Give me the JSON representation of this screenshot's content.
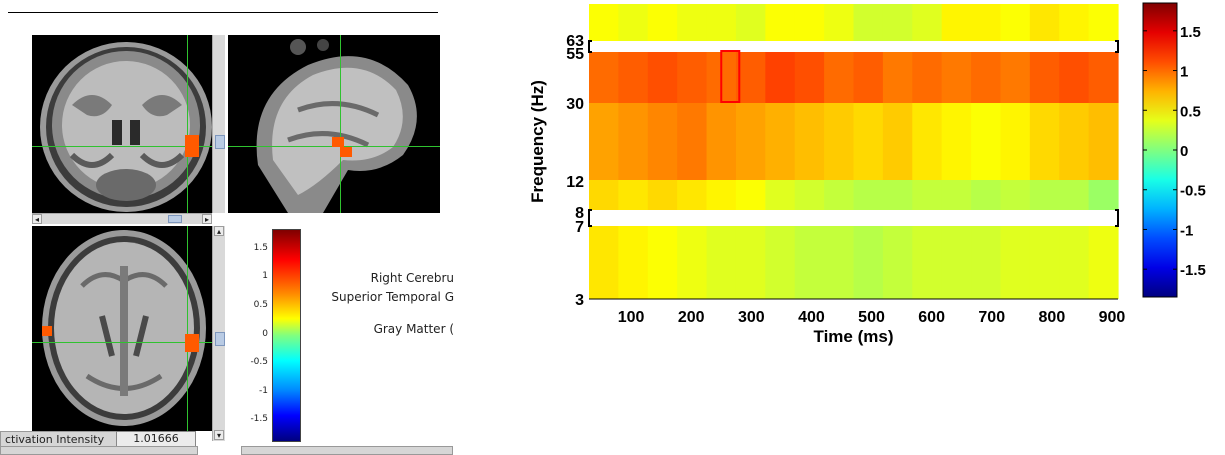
{
  "brain_viewer": {
    "anatomy": {
      "line1": "Right Cerebru",
      "line2": "Superior Temporal G",
      "line3": "Gray Matter ("
    },
    "colorbar_ticks": [
      "1.5",
      "1",
      "0.5",
      "0",
      "-0.5",
      "-1",
      "-1.5"
    ],
    "status": {
      "label": "ctivation Intensity",
      "value": "1.01666"
    }
  },
  "spectrogram": {
    "xlabel": "Time (ms)",
    "ylabel": "Frequency (Hz)",
    "x_ticks": [
      "100",
      "200",
      "300",
      "400",
      "500",
      "600",
      "700",
      "800",
      "900"
    ],
    "y_ticks": [
      "63",
      "55",
      "30",
      "12",
      "8",
      "7",
      "3"
    ],
    "colorbar_ticks": [
      "1.5",
      "1",
      "0.5",
      "0",
      "-0.5",
      "-1",
      "-1.5"
    ]
  },
  "chart_data": {
    "type": "heatmap",
    "xlabel": "Time (ms)",
    "ylabel": "Frequency (Hz)",
    "x_range": [
      30,
      910
    ],
    "time_bins": [
      50,
      100,
      150,
      200,
      250,
      300,
      350,
      400,
      450,
      500,
      550,
      600,
      650,
      700,
      750,
      800,
      850,
      900
    ],
    "bands": [
      {
        "range": [
          63,
          80
        ],
        "values": [
          0.45,
          0.4,
          0.45,
          0.4,
          0.4,
          0.35,
          0.45,
          0.45,
          0.4,
          0.3,
          0.3,
          0.35,
          0.5,
          0.5,
          0.45,
          0.55,
          0.5,
          0.45
        ]
      },
      {
        "range": [
          30,
          55
        ],
        "values": [
          1.0,
          1.05,
          1.1,
          1.05,
          1.0,
          1.05,
          1.15,
          1.1,
          1.0,
          1.05,
          0.95,
          1.0,
          0.95,
          1.0,
          0.95,
          1.05,
          1.1,
          1.05
        ]
      },
      {
        "range": [
          12,
          30
        ],
        "values": [
          0.8,
          0.85,
          0.9,
          0.95,
          0.85,
          0.8,
          0.75,
          0.7,
          0.65,
          0.6,
          0.65,
          0.55,
          0.5,
          0.45,
          0.5,
          0.6,
          0.65,
          0.7
        ]
      },
      {
        "range": [
          8,
          12
        ],
        "values": [
          0.6,
          0.55,
          0.6,
          0.55,
          0.5,
          0.45,
          0.35,
          0.3,
          0.25,
          0.2,
          0.2,
          0.25,
          0.25,
          0.2,
          0.25,
          0.2,
          0.2,
          0.1
        ]
      },
      {
        "range": [
          3,
          7
        ],
        "values": [
          0.55,
          0.5,
          0.45,
          0.4,
          0.35,
          0.35,
          0.3,
          0.25,
          0.25,
          0.2,
          0.25,
          0.3,
          0.3,
          0.3,
          0.35,
          0.35,
          0.35,
          0.4
        ]
      }
    ],
    "highlight": {
      "time": [
        250,
        280
      ],
      "freq": [
        33,
        55
      ]
    },
    "clim": [
      -1.85,
      1.85
    ],
    "colormap": "jet"
  }
}
